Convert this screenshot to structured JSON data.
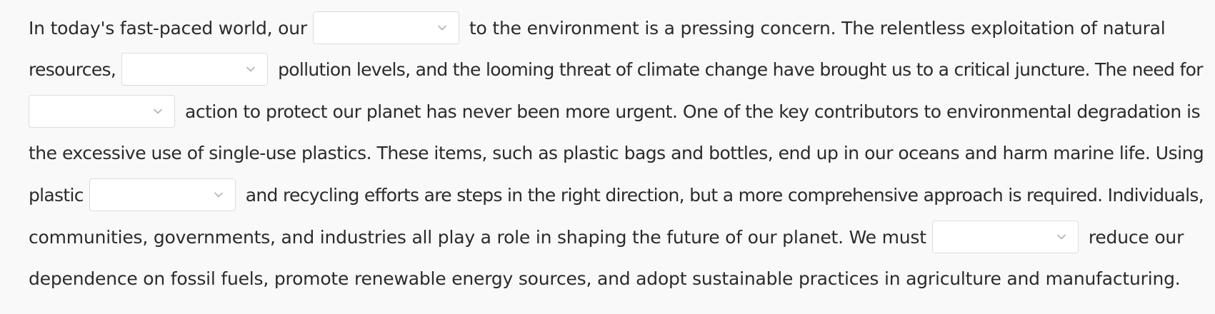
{
  "passage": {
    "line1": {
      "before": "In today's fast-paced world, our",
      "after": "to the environment is a pressing concern. The relentless exploitation of natural"
    },
    "line2": {
      "before": "resources,",
      "after": "pollution levels, and the looming threat of climate change have brought us to a critical juncture. The need for"
    },
    "line3": {
      "after": "action to protect our planet has never been more urgent. One of the key contributors to environmental degradation is"
    },
    "line4": {
      "text": "the excessive use of single-use plastics. These items, such as plastic bags and bottles, end up in our oceans and harm marine life. Using"
    },
    "line5": {
      "before": "plastic",
      "after": "and recycling efforts are steps in the right direction, but a more comprehensive approach is required. Individuals,"
    },
    "line6": {
      "before": "communities, governments, and industries all play a role in shaping the future of our planet. We must",
      "after": "reduce our"
    },
    "line7": {
      "text": "dependence on fossil fuels, promote renewable energy sources, and adopt sustainable practices in agriculture and manufacturing."
    }
  },
  "blanks": [
    {
      "selected": "",
      "icon": "chevron-down-icon"
    },
    {
      "selected": "",
      "icon": "chevron-down-icon"
    },
    {
      "selected": "",
      "icon": "chevron-down-icon"
    },
    {
      "selected": "",
      "icon": "chevron-down-icon"
    },
    {
      "selected": "",
      "icon": "chevron-down-icon"
    }
  ],
  "colors": {
    "background": "#f9f9f9",
    "text": "#2b2b2b",
    "dropdown_border": "#dcdcdc",
    "chevron": "#b3b3b3"
  }
}
